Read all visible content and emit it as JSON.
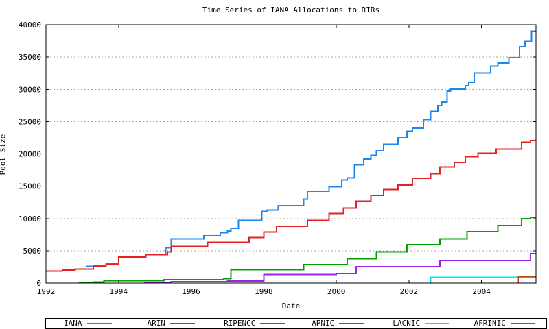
{
  "chart_data": {
    "type": "line",
    "subtype": "step",
    "title": "Time Series of IANA Allocations to RIRs",
    "xlabel": "Date",
    "ylabel": "Pool Size",
    "xlim": [
      1992,
      2005.5
    ],
    "ylim": [
      0,
      40000
    ],
    "xticks": [
      1992,
      1994,
      1996,
      1998,
      2000,
      2002,
      2004
    ],
    "yticks": [
      0,
      5000,
      10000,
      15000,
      20000,
      25000,
      30000,
      35000,
      40000
    ],
    "grid": "horizontal-dashed",
    "grid_color": "#a6a6a6",
    "axis_color": "#000000",
    "legend_position": "bottom",
    "series": [
      {
        "name": "IANA",
        "color": "#1c86ee",
        "points": [
          [
            1993.1,
            2600
          ],
          [
            1993.3,
            2700
          ],
          [
            1993.65,
            2950
          ],
          [
            1994.0,
            4150
          ],
          [
            1994.75,
            4480
          ],
          [
            1995.3,
            5450
          ],
          [
            1995.45,
            6860
          ],
          [
            1996.35,
            7320
          ],
          [
            1996.8,
            7800
          ],
          [
            1997.0,
            8050
          ],
          [
            1997.1,
            8500
          ],
          [
            1997.3,
            9700
          ],
          [
            1997.95,
            11100
          ],
          [
            1998.1,
            11300
          ],
          [
            1998.4,
            12000
          ],
          [
            1999.1,
            13000
          ],
          [
            1999.2,
            14200
          ],
          [
            1999.8,
            14900
          ],
          [
            2000.15,
            15950
          ],
          [
            2000.3,
            16300
          ],
          [
            2000.5,
            18300
          ],
          [
            2000.75,
            19200
          ],
          [
            2000.95,
            19800
          ],
          [
            2001.1,
            20500
          ],
          [
            2001.3,
            21500
          ],
          [
            2001.7,
            22500
          ],
          [
            2001.95,
            23500
          ],
          [
            2002.1,
            24000
          ],
          [
            2002.4,
            25300
          ],
          [
            2002.6,
            26600
          ],
          [
            2002.8,
            27500
          ],
          [
            2002.9,
            28000
          ],
          [
            2003.05,
            29700
          ],
          [
            2003.15,
            30050
          ],
          [
            2003.55,
            30550
          ],
          [
            2003.65,
            31100
          ],
          [
            2003.8,
            32500
          ],
          [
            2004.25,
            33600
          ],
          [
            2004.45,
            34050
          ],
          [
            2004.75,
            34900
          ],
          [
            2005.05,
            36600
          ],
          [
            2005.2,
            37400
          ],
          [
            2005.38,
            39000
          ]
        ]
      },
      {
        "name": "ARIN",
        "color": "#e22222",
        "points": [
          [
            1992.0,
            1850
          ],
          [
            1992.45,
            2000
          ],
          [
            1992.8,
            2200
          ],
          [
            1993.3,
            2620
          ],
          [
            1993.65,
            2900
          ],
          [
            1994.0,
            4050
          ],
          [
            1994.75,
            4380
          ],
          [
            1995.35,
            4850
          ],
          [
            1995.45,
            5700
          ],
          [
            1996.45,
            6330
          ],
          [
            1997.6,
            7030
          ],
          [
            1998.0,
            7900
          ],
          [
            1998.35,
            8800
          ],
          [
            1999.2,
            9690
          ],
          [
            1999.8,
            10750
          ],
          [
            2000.2,
            11640
          ],
          [
            2000.55,
            12700
          ],
          [
            2000.95,
            13580
          ],
          [
            2001.3,
            14460
          ],
          [
            2001.7,
            15170
          ],
          [
            2002.1,
            16230
          ],
          [
            2002.6,
            16940
          ],
          [
            2002.85,
            18000
          ],
          [
            2003.25,
            18700
          ],
          [
            2003.55,
            19590
          ],
          [
            2003.9,
            20120
          ],
          [
            2004.4,
            20760
          ],
          [
            2005.1,
            21820
          ],
          [
            2005.35,
            22050
          ]
        ]
      },
      {
        "name": "RIPENCC",
        "color": "#00a000",
        "points": [
          [
            1992.9,
            60
          ],
          [
            1993.3,
            150
          ],
          [
            1993.6,
            350
          ],
          [
            1995.25,
            550
          ],
          [
            1996.9,
            700
          ],
          [
            1997.1,
            2050
          ],
          [
            1999.1,
            2870
          ],
          [
            2000.3,
            3760
          ],
          [
            2001.1,
            4820
          ],
          [
            2001.95,
            5930
          ],
          [
            2002.85,
            6840
          ],
          [
            2003.6,
            7950
          ],
          [
            2004.45,
            8900
          ],
          [
            2005.1,
            10000
          ],
          [
            2005.35,
            10200
          ]
        ]
      },
      {
        "name": "APNIC",
        "color": "#a020f0",
        "points": [
          [
            1994.7,
            100
          ],
          [
            1995.45,
            200
          ],
          [
            1997.0,
            330
          ],
          [
            1998.0,
            1300
          ],
          [
            2000.0,
            1480
          ],
          [
            2000.55,
            2520
          ],
          [
            2002.85,
            3510
          ],
          [
            2005.35,
            4560
          ]
        ]
      },
      {
        "name": "LACNIC",
        "color": "#00e6e6",
        "points": [
          [
            2002.6,
            0
          ],
          [
            2002.6,
            900
          ]
        ]
      },
      {
        "name": "AFRINIC",
        "color": "#b4500f",
        "points": [
          [
            2005.02,
            0
          ],
          [
            2005.02,
            1000
          ]
        ]
      }
    ]
  }
}
